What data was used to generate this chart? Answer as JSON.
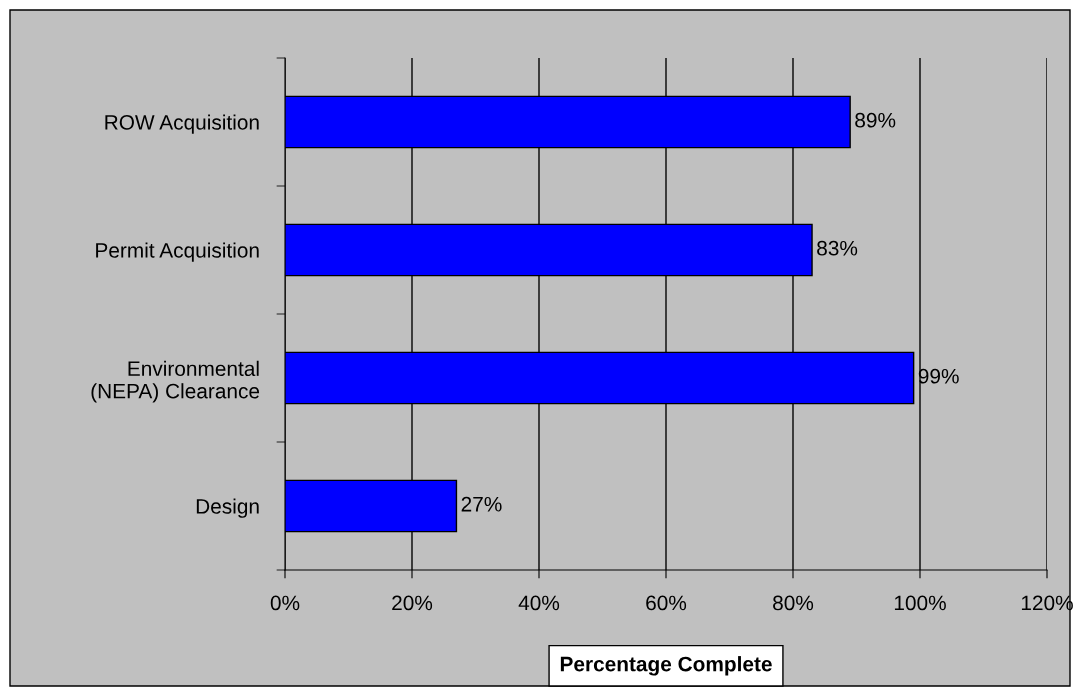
{
  "chart_data": {
    "type": "bar",
    "orientation": "horizontal",
    "categories": [
      "ROW Acquisition",
      "Permit Acquisition",
      "Environmental\n(NEPA) Clearance",
      "Design"
    ],
    "values": [
      89,
      83,
      99,
      27
    ],
    "value_labels": [
      "89%",
      "83%",
      "99%",
      "27%"
    ],
    "color": "#0000ff",
    "xlabel": "Percentage Complete",
    "xlim": [
      0,
      120
    ],
    "xticks": [
      {
        "value": 0,
        "label": "0%"
      },
      {
        "value": 20,
        "label": "20%"
      },
      {
        "value": 40,
        "label": "40%"
      },
      {
        "value": 60,
        "label": "60%"
      },
      {
        "value": 80,
        "label": "80%"
      },
      {
        "value": 100,
        "label": "100%"
      },
      {
        "value": 120,
        "label": "120%"
      }
    ],
    "grid": "x",
    "legend": false
  }
}
